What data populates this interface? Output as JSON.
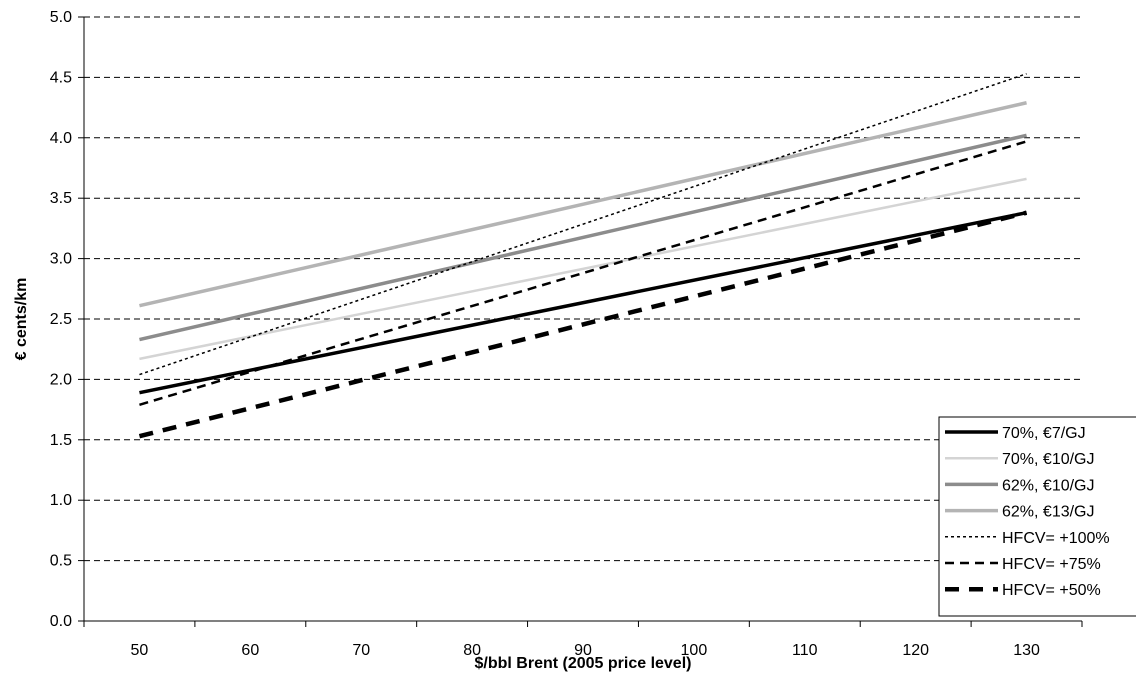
{
  "chart_data": {
    "type": "line",
    "xlabel": "$/bbl Brent (2005 price level)",
    "ylabel": "€ cents/km",
    "xlim": [
      45,
      135
    ],
    "ylim": [
      0,
      5
    ],
    "xticks": [
      50,
      60,
      70,
      80,
      90,
      100,
      110,
      120,
      130
    ],
    "yticks": [
      "0.0",
      "0.5",
      "1.0",
      "1.5",
      "2.0",
      "2.5",
      "3.0",
      "3.5",
      "4.0",
      "4.5",
      "5.0"
    ],
    "grid": "horizontal dashed",
    "legend_position": "bottom-right",
    "series": [
      {
        "name": "70%, €7/GJ",
        "x": [
          50,
          130
        ],
        "values": [
          1.89,
          3.38
        ],
        "color": "#000000",
        "style": "solid-thick"
      },
      {
        "name": "70%, €10/GJ",
        "x": [
          50,
          130
        ],
        "values": [
          2.17,
          3.66
        ],
        "color": "#d4d4d4",
        "style": "solid-thin"
      },
      {
        "name": "62%, €10/GJ",
        "x": [
          50,
          130
        ],
        "values": [
          2.33,
          4.02
        ],
        "color": "#8c8c8c",
        "style": "solid-thick"
      },
      {
        "name": "62%, €13/GJ",
        "x": [
          50,
          130
        ],
        "values": [
          2.61,
          4.29
        ],
        "color": "#b4b4b4",
        "style": "solid-thick"
      },
      {
        "name": "HFCV= +100%",
        "x": [
          50,
          130
        ],
        "values": [
          2.04,
          4.53
        ],
        "color": "#000000",
        "style": "dotted"
      },
      {
        "name": "HFCV= +75%",
        "x": [
          50,
          130
        ],
        "values": [
          1.79,
          3.97
        ],
        "color": "#000000",
        "style": "dashed"
      },
      {
        "name": "HFCV= +50%",
        "x": [
          50,
          130
        ],
        "values": [
          1.53,
          3.38
        ],
        "color": "#000000",
        "style": "dashed-thick"
      }
    ]
  }
}
